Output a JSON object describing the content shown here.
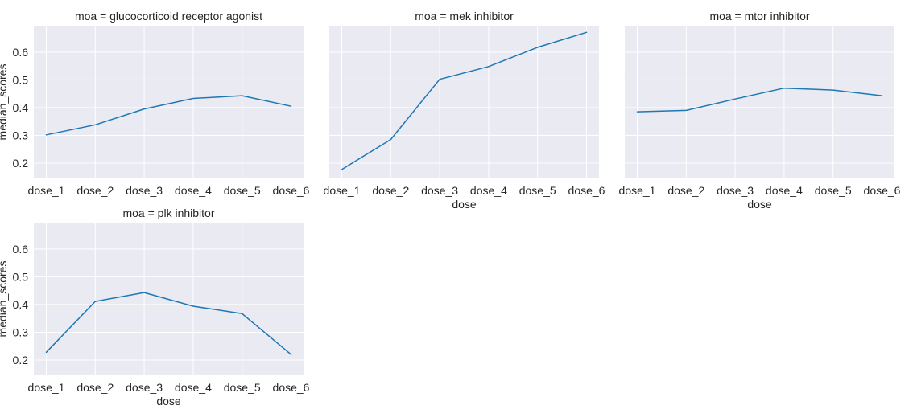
{
  "chart_data": {
    "type": "line",
    "layout": "facet_grid",
    "col_wrap": 3,
    "xlabel": "dose",
    "ylabel": "median_scores",
    "categories": [
      "dose_1",
      "dose_2",
      "dose_3",
      "dose_4",
      "dose_5",
      "dose_6"
    ],
    "ylim": [
      0.145,
      0.695
    ],
    "yticks": [
      0.2,
      0.3,
      0.4,
      0.5,
      0.6
    ],
    "grid": true,
    "line_color": "#1f77b4",
    "background_color": "#eaeaf2",
    "panels": [
      {
        "title": "moa = glucocorticoid receptor agonist",
        "show_yticks": true,
        "show_ylabel": true,
        "show_xlabel": false,
        "values": [
          0.302,
          0.338,
          0.395,
          0.433,
          0.443,
          0.405
        ]
      },
      {
        "title": "moa = mek inhibitor",
        "show_yticks": false,
        "show_ylabel": false,
        "show_xlabel": true,
        "values": [
          0.177,
          0.285,
          0.502,
          0.548,
          0.617,
          0.671
        ]
      },
      {
        "title": "moa = mtor inhibitor",
        "show_yticks": false,
        "show_ylabel": false,
        "show_xlabel": true,
        "values": [
          0.385,
          0.39,
          0.431,
          0.47,
          0.463,
          0.443
        ]
      },
      {
        "title": "moa = plk inhibitor",
        "show_yticks": true,
        "show_ylabel": true,
        "show_xlabel": true,
        "values": [
          0.228,
          0.411,
          0.443,
          0.394,
          0.367,
          0.22
        ]
      }
    ]
  }
}
